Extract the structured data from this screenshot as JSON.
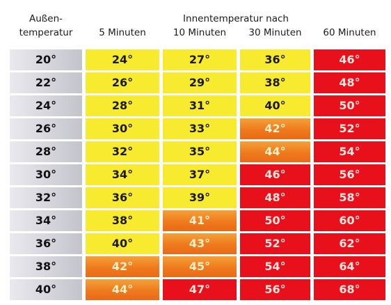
{
  "headers": {
    "outside_line1": "Außen-",
    "outside_line2": "temperatur",
    "inside_group": "Innentemperatur nach",
    "col_5": "5 Minuten",
    "col_10": "10 Minuten",
    "col_30": "30 Minuten",
    "col_60": "60 Minuten"
  },
  "colors": {
    "grey": "#c3c3cb",
    "yellow": "#f8ea2e",
    "orange": "#ef7a1e",
    "red": "#e8101a"
  },
  "rows": [
    {
      "outside": "20°",
      "cells": [
        {
          "v": "24°",
          "c": "yellow"
        },
        {
          "v": "27°",
          "c": "yellow"
        },
        {
          "v": "36°",
          "c": "yellow"
        },
        {
          "v": "46°",
          "c": "red"
        }
      ]
    },
    {
      "outside": "22°",
      "cells": [
        {
          "v": "26°",
          "c": "yellow"
        },
        {
          "v": "29°",
          "c": "yellow"
        },
        {
          "v": "38°",
          "c": "yellow"
        },
        {
          "v": "48°",
          "c": "red"
        }
      ]
    },
    {
      "outside": "24°",
      "cells": [
        {
          "v": "28°",
          "c": "yellow"
        },
        {
          "v": "31°",
          "c": "yellow"
        },
        {
          "v": "40°",
          "c": "yellow"
        },
        {
          "v": "50°",
          "c": "red"
        }
      ]
    },
    {
      "outside": "26°",
      "cells": [
        {
          "v": "30°",
          "c": "yellow"
        },
        {
          "v": "33°",
          "c": "yellow"
        },
        {
          "v": "42°",
          "c": "orange"
        },
        {
          "v": "52°",
          "c": "red"
        }
      ]
    },
    {
      "outside": "28°",
      "cells": [
        {
          "v": "32°",
          "c": "yellow"
        },
        {
          "v": "35°",
          "c": "yellow"
        },
        {
          "v": "44°",
          "c": "orange"
        },
        {
          "v": "54°",
          "c": "red"
        }
      ]
    },
    {
      "outside": "30°",
      "cells": [
        {
          "v": "34°",
          "c": "yellow"
        },
        {
          "v": "37°",
          "c": "yellow"
        },
        {
          "v": "46°",
          "c": "red"
        },
        {
          "v": "56°",
          "c": "red"
        }
      ]
    },
    {
      "outside": "32°",
      "cells": [
        {
          "v": "36°",
          "c": "yellow"
        },
        {
          "v": "39°",
          "c": "yellow"
        },
        {
          "v": "48°",
          "c": "red"
        },
        {
          "v": "58°",
          "c": "red"
        }
      ]
    },
    {
      "outside": "34°",
      "cells": [
        {
          "v": "38°",
          "c": "yellow"
        },
        {
          "v": "41°",
          "c": "orange"
        },
        {
          "v": "50°",
          "c": "red"
        },
        {
          "v": "60°",
          "c": "red"
        }
      ]
    },
    {
      "outside": "36°",
      "cells": [
        {
          "v": "40°",
          "c": "yellow"
        },
        {
          "v": "43°",
          "c": "orange"
        },
        {
          "v": "52°",
          "c": "red"
        },
        {
          "v": "62°",
          "c": "red"
        }
      ]
    },
    {
      "outside": "38°",
      "cells": [
        {
          "v": "42°",
          "c": "orange"
        },
        {
          "v": "45°",
          "c": "orange"
        },
        {
          "v": "54°",
          "c": "red"
        },
        {
          "v": "64°",
          "c": "red"
        }
      ]
    },
    {
      "outside": "40°",
      "cells": [
        {
          "v": "44°",
          "c": "orange"
        },
        {
          "v": "47°",
          "c": "red"
        },
        {
          "v": "56°",
          "c": "red"
        },
        {
          "v": "68°",
          "c": "red"
        }
      ]
    }
  ]
}
